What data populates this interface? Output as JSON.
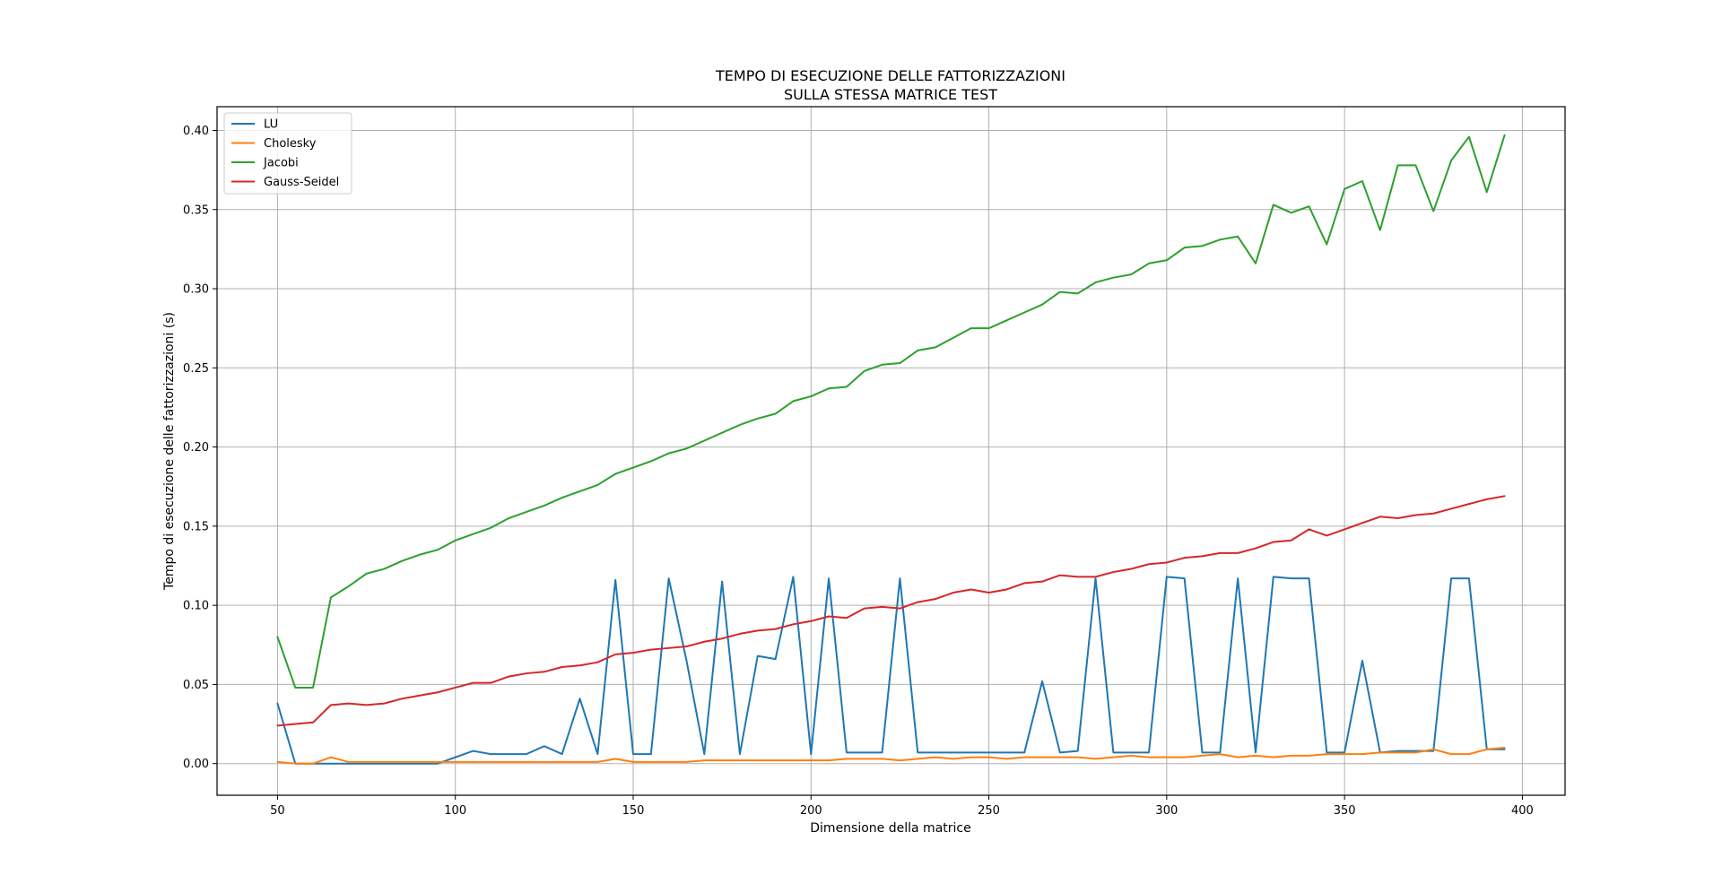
{
  "chart_data": {
    "type": "line",
    "title": [
      "TEMPO DI ESECUZIONE DELLE FATTORIZZAZIONI",
      "SULLA STESSA MATRICE TEST"
    ],
    "xlabel": "Dimensione della matrice",
    "ylabel": "Tempo di esecuzione delle fattorizzazioni (s)",
    "xlim": [
      33,
      412
    ],
    "ylim": [
      -0.02,
      0.415
    ],
    "xticks": [
      50,
      100,
      150,
      200,
      250,
      300,
      350,
      400
    ],
    "yticks": [
      0.0,
      0.05,
      0.1,
      0.15,
      0.2,
      0.25,
      0.3,
      0.35,
      0.4
    ],
    "grid": true,
    "legend": "upper-left",
    "x": [
      50,
      55,
      60,
      65,
      70,
      75,
      80,
      85,
      90,
      95,
      100,
      105,
      110,
      115,
      120,
      125,
      130,
      135,
      140,
      145,
      150,
      155,
      160,
      165,
      170,
      175,
      180,
      185,
      190,
      195,
      200,
      205,
      210,
      215,
      220,
      225,
      230,
      235,
      240,
      245,
      250,
      255,
      260,
      265,
      270,
      275,
      280,
      285,
      290,
      295,
      300,
      305,
      310,
      315,
      320,
      325,
      330,
      335,
      340,
      345,
      350,
      355,
      360,
      365,
      370,
      375,
      380,
      385,
      390,
      395
    ],
    "series": [
      {
        "name": "LU",
        "color": "#1f77b4",
        "values": [
          0.038,
          0.0,
          0.0,
          0.0,
          0.0,
          0.0,
          0.0,
          0.0,
          0.0,
          0.0,
          0.004,
          0.008,
          0.006,
          0.006,
          0.006,
          0.011,
          0.006,
          0.041,
          0.006,
          0.116,
          0.006,
          0.006,
          0.117,
          0.065,
          0.006,
          0.115,
          0.006,
          0.068,
          0.066,
          0.118,
          0.006,
          0.117,
          0.007,
          0.007,
          0.007,
          0.117,
          0.007,
          0.007,
          0.007,
          0.007,
          0.007,
          0.007,
          0.007,
          0.052,
          0.007,
          0.008,
          0.117,
          0.007,
          0.007,
          0.007,
          0.118,
          0.117,
          0.007,
          0.007,
          0.117,
          0.007,
          0.118,
          0.117,
          0.117,
          0.007,
          0.007,
          0.065,
          0.007,
          0.008,
          0.008,
          0.008,
          0.117,
          0.117,
          0.009,
          0.009
        ]
      },
      {
        "name": "Cholesky",
        "color": "#ff7f0e",
        "values": [
          0.001,
          0.0,
          0.0,
          0.004,
          0.001,
          0.001,
          0.001,
          0.001,
          0.001,
          0.001,
          0.001,
          0.001,
          0.001,
          0.001,
          0.001,
          0.001,
          0.001,
          0.001,
          0.001,
          0.003,
          0.001,
          0.001,
          0.001,
          0.001,
          0.002,
          0.002,
          0.002,
          0.002,
          0.002,
          0.002,
          0.002,
          0.002,
          0.003,
          0.003,
          0.003,
          0.002,
          0.003,
          0.004,
          0.003,
          0.004,
          0.004,
          0.003,
          0.004,
          0.004,
          0.004,
          0.004,
          0.003,
          0.004,
          0.005,
          0.004,
          0.004,
          0.004,
          0.005,
          0.006,
          0.004,
          0.005,
          0.004,
          0.005,
          0.005,
          0.006,
          0.006,
          0.006,
          0.007,
          0.007,
          0.007,
          0.009,
          0.006,
          0.006,
          0.009,
          0.01
        ]
      },
      {
        "name": "Jacobi",
        "color": "#2ca02c",
        "values": [
          0.08,
          0.048,
          0.048,
          0.105,
          0.112,
          0.12,
          0.123,
          0.128,
          0.132,
          0.135,
          0.141,
          0.145,
          0.149,
          0.155,
          0.159,
          0.163,
          0.168,
          0.172,
          0.176,
          0.183,
          0.187,
          0.191,
          0.196,
          0.199,
          0.204,
          0.209,
          0.214,
          0.218,
          0.221,
          0.229,
          0.232,
          0.237,
          0.238,
          0.248,
          0.252,
          0.253,
          0.261,
          0.263,
          0.269,
          0.275,
          0.275,
          0.28,
          0.285,
          0.29,
          0.298,
          0.297,
          0.304,
          0.307,
          0.309,
          0.316,
          0.318,
          0.326,
          0.327,
          0.331,
          0.333,
          0.316,
          0.353,
          0.348,
          0.352,
          0.328,
          0.363,
          0.368,
          0.337,
          0.378,
          0.378,
          0.349,
          0.381,
          0.396,
          0.361,
          0.397
        ]
      },
      {
        "name": "Gauss-Seidel",
        "color": "#d62728",
        "values": [
          0.024,
          0.025,
          0.026,
          0.037,
          0.038,
          0.037,
          0.038,
          0.041,
          0.043,
          0.045,
          0.048,
          0.051,
          0.051,
          0.055,
          0.057,
          0.058,
          0.061,
          0.062,
          0.064,
          0.069,
          0.07,
          0.072,
          0.073,
          0.074,
          0.077,
          0.079,
          0.082,
          0.084,
          0.085,
          0.088,
          0.09,
          0.093,
          0.092,
          0.098,
          0.099,
          0.098,
          0.102,
          0.104,
          0.108,
          0.11,
          0.108,
          0.11,
          0.114,
          0.115,
          0.119,
          0.118,
          0.118,
          0.121,
          0.123,
          0.126,
          0.127,
          0.13,
          0.131,
          0.133,
          0.133,
          0.136,
          0.14,
          0.141,
          0.148,
          0.144,
          0.148,
          0.152,
          0.156,
          0.155,
          0.157,
          0.158,
          0.161,
          0.164,
          0.167,
          0.169
        ]
      }
    ]
  }
}
